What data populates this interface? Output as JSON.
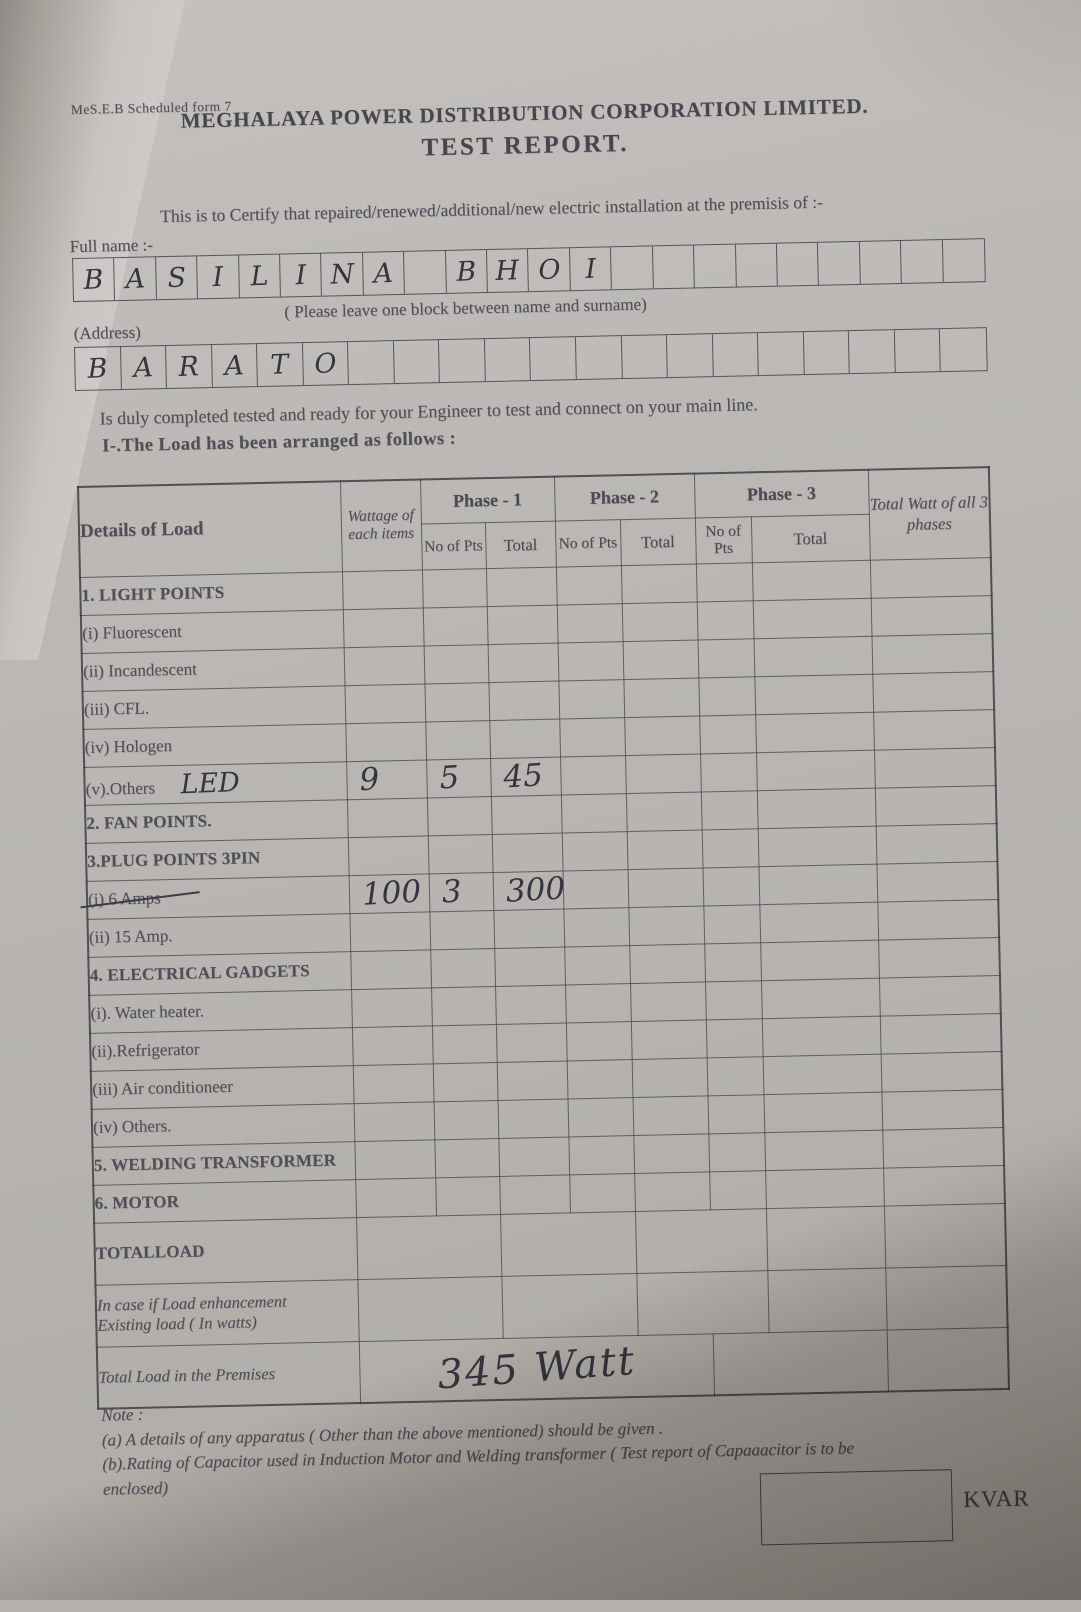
{
  "meta": {
    "form_code": "MeS.E.B Scheduled form 7"
  },
  "header": {
    "org": "MEGHALAYA POWER DISTRIBUTION CORPORATION LIMITED.",
    "title": "TEST REPORT."
  },
  "intro": {
    "certify": "This is to Certify that repaired/renewed/additional/new electric installation at the premisis of :-",
    "full_name_label": "Full name :-",
    "name_hint": "( Please leave one block between name and surname)",
    "address_label": "(Address)",
    "ready": "Is duly completed tested and ready for your Engineer to test and connect on your main line.",
    "load_heading": "I-.The Load has been arranged as follows :"
  },
  "full_name": {
    "letters": "BASILINA BHOI",
    "box_count": 22
  },
  "address": {
    "letters": "BARATO",
    "box_count": 20
  },
  "load_table": {
    "col_headers": {
      "details": "Details of Load",
      "wattage": "Wattage of each items",
      "phase1": "Phase - 1",
      "phase2": "Phase - 2",
      "phase3": "Phase - 3",
      "no_of_pts": "No of Pts",
      "total": "Total",
      "total_watt": "Total Watt of all 3 phases"
    },
    "rows": [
      {
        "label": "1. LIGHT POINTS",
        "strong": true
      },
      {
        "label": "(i) Fluorescent"
      },
      {
        "label": "(ii) Incandescent"
      },
      {
        "label": "(iii) CFL."
      },
      {
        "label": "(iv) Hologen"
      },
      {
        "label": "(v).Others",
        "label_hand": "LED",
        "wattage": "9",
        "p1_pts": "5",
        "p1_total": "45"
      },
      {
        "label": "2. FAN POINTS.",
        "strong": true
      },
      {
        "label": "3.PLUG POINTS 3PIN",
        "strong": true
      },
      {
        "label": "(i) 6 Amps",
        "struck": true,
        "wattage": "100",
        "p1_pts": "3",
        "p1_total": "300"
      },
      {
        "label": "(ii) 15 Amp."
      },
      {
        "label": "4. ELECTRICAL GADGETS",
        "strong": true
      },
      {
        "label": "(i). Water heater."
      },
      {
        "label": "(ii).Refrigerator"
      },
      {
        "label": "(iii) Air conditioneer"
      },
      {
        "label": "(iv) Others."
      },
      {
        "label": "5. WELDING TRANSFORMER",
        "strong": true
      },
      {
        "label": "6. MOTOR",
        "strong": true
      },
      {
        "label": "TOTALLOAD",
        "strong": true,
        "tall": true,
        "merged": true
      },
      {
        "label": "In case if Load enhancement\nExisting load ( In watts)",
        "italic": true,
        "tall": true,
        "merged": true
      },
      {
        "label": "Total Load in the Premises",
        "italic": true,
        "tall": true,
        "merged": true,
        "hand_total": "345 Watt"
      }
    ]
  },
  "notes": {
    "heading": "Note :",
    "a": "(a) A details of any apparatus ( Other than the above mentioned) should be given .",
    "b": "(b).Rating of Capacitor used in Induction Motor and Welding transformer ( Test report of Capaaacitor  is to be\nenclosed)"
  },
  "kvar": {
    "label": "KVAR"
  }
}
